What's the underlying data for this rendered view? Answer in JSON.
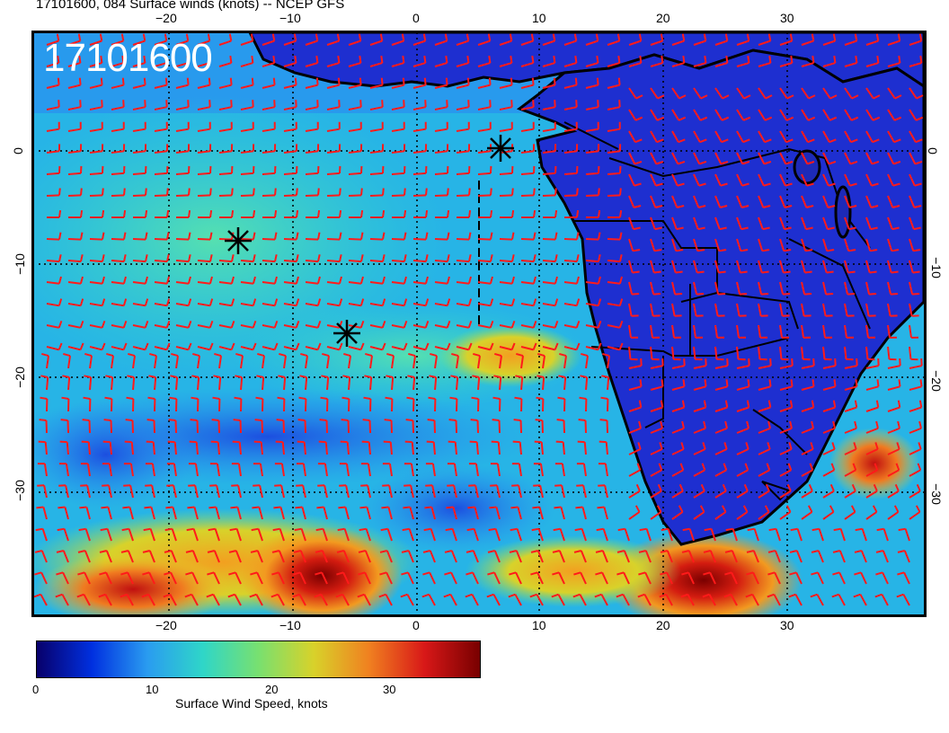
{
  "title": "17101600, 084 Surface winds (knots) -- NCEP GFS",
  "stamp": "17101600",
  "lon_ticks": [
    "−20",
    "−10",
    "0",
    "10",
    "20",
    "30"
  ],
  "lat_ticks": [
    "0",
    "−10",
    "−20",
    "−30"
  ],
  "colorbar": {
    "label": "Surface Wind Speed, knots",
    "ticks": [
      "0",
      "10",
      "20",
      "30"
    ],
    "colors": [
      "#08006b",
      "#0030e0",
      "#2a9cf0",
      "#2fd6c8",
      "#78e070",
      "#d8d22a",
      "#f08020",
      "#d81818",
      "#780000"
    ]
  },
  "map": {
    "ocean_color": "#27b4e6",
    "land_color": "#1e2fd0",
    "barb_color": "#ff1a1a",
    "markers": [
      "cyclone-star",
      "cyclone-star",
      "cyclone-star"
    ]
  }
}
